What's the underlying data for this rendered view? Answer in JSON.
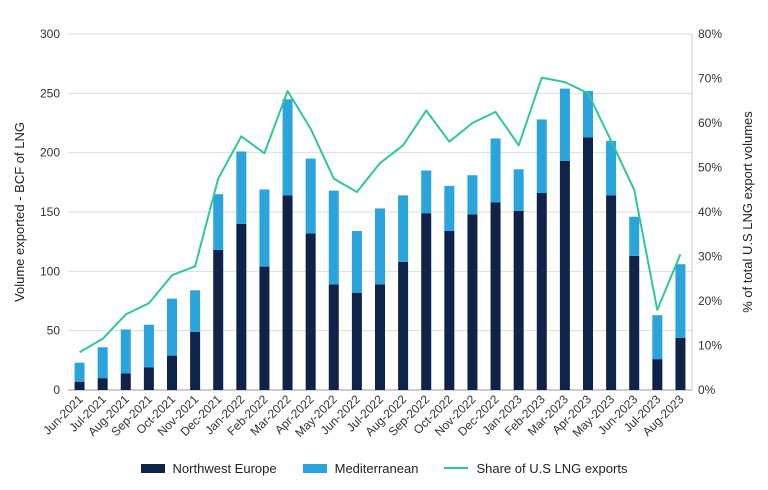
{
  "chart_data": {
    "type": "bar",
    "categories": [
      "Jun-2021",
      "Jul-2021",
      "Aug-2021",
      "Sep-2021",
      "Oct-2021",
      "Nov-2021",
      "Dec-2021",
      "Jan-2022",
      "Feb-2022",
      "Mar-2022",
      "Apr-2022",
      "May-2022",
      "Jun-2022",
      "Jul-2022",
      "Aug-2022",
      "Sep-2022",
      "Oct-2022",
      "Nov-2022",
      "Dec-2022",
      "Jan-2023",
      "Feb-2023",
      "Mar-2023",
      "Apr-2023",
      "May-2023",
      "Jun-2023",
      "Jul-2023",
      "Aug-2023"
    ],
    "series": [
      {
        "name": "Northwest Europe",
        "kind": "bar",
        "axis": "left",
        "color": "#0f2248",
        "values": [
          7,
          10,
          14,
          19,
          29,
          49,
          118,
          140,
          104,
          164,
          132,
          89,
          82,
          89,
          108,
          149,
          134,
          148,
          158,
          151,
          166,
          193,
          213,
          164,
          113,
          26,
          44
        ]
      },
      {
        "name": "Mediterranean",
        "kind": "bar",
        "axis": "left",
        "color": "#2ba3dd",
        "values": [
          16,
          26,
          37,
          36,
          48,
          35,
          47,
          61,
          65,
          81,
          63,
          79,
          52,
          64,
          56,
          36,
          38,
          33,
          54,
          35,
          62,
          61,
          39,
          46,
          33,
          37,
          62
        ]
      },
      {
        "name": "Share of U.S LNG exports",
        "kind": "line",
        "axis": "right",
        "color": "#2ec79a",
        "values": [
          8.5,
          11.5,
          17,
          19.5,
          25.8,
          27.8,
          47.5,
          57,
          53.2,
          67.2,
          58.7,
          47.5,
          44.5,
          51,
          55,
          62.8,
          55.8,
          60,
          62.5,
          55,
          70.2,
          69.2,
          66.7,
          56,
          45,
          18,
          30.5
        ]
      }
    ],
    "ylabel": "Volume exported - BCF of LNG",
    "ylabel_right": "% of total U.S LNG export volumes",
    "ylim": [
      0,
      300
    ],
    "yticks": [
      "0",
      "50",
      "100",
      "150",
      "200",
      "250",
      "300"
    ],
    "ylim_right": [
      0,
      80
    ],
    "yticks_right": [
      "0%",
      "10%",
      "20%",
      "30%",
      "40%",
      "50%",
      "60%",
      "70%",
      "80%"
    ],
    "stacked": true,
    "grid": "horizontal",
    "legend": "bottom-center"
  },
  "legend_items": [
    {
      "label": "Northwest Europe",
      "color": "#0f2248",
      "kind": "box"
    },
    {
      "label": "Mediterranean",
      "color": "#2ba3dd",
      "kind": "box"
    },
    {
      "label": "Share of U.S LNG exports",
      "color": "#2ec79a",
      "kind": "line"
    }
  ]
}
